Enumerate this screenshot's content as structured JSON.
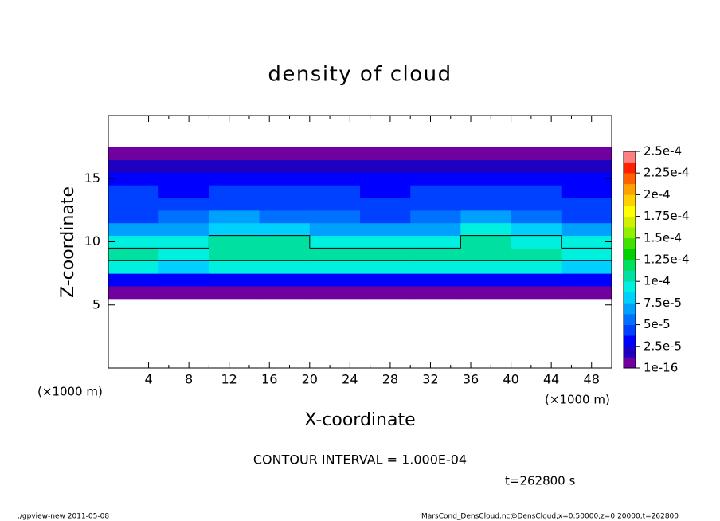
{
  "chart_data": {
    "type": "heatmap",
    "title": "density of cloud",
    "xlabel": "X-coordinate",
    "ylabel": "Z-coordinate",
    "x_unit": "(×1000 m)",
    "y_unit": "(×1000 m)",
    "contour_note": "CONTOUR INTERVAL = 1.000E-04",
    "time_note": "t=262800 s",
    "footer_left": "./gpview-new  2011-05-08",
    "footer_right": "MarsCond_DensCloud.nc@DensCloud,x=0:50000,z=0:20000,t=262800",
    "xlim": [
      0,
      50
    ],
    "ylim": [
      0,
      20
    ],
    "xticks": [
      4,
      8,
      12,
      16,
      20,
      24,
      28,
      32,
      36,
      40,
      44,
      48
    ],
    "yticks": [
      5,
      10,
      15
    ],
    "x": [
      2.5,
      7.5,
      12.5,
      17.5,
      22.5,
      27.5,
      32.5,
      37.5,
      42.5,
      47.5
    ],
    "y": [
      6,
      7,
      8,
      9,
      10,
      11,
      12,
      13,
      14,
      15,
      16,
      17
    ],
    "values": [
      [
        8e-06,
        8e-06,
        8e-06,
        8e-06,
        8e-06,
        8e-06,
        8e-06,
        8e-06,
        8e-06,
        8e-06
      ],
      [
        3.5e-05,
        3.2e-05,
        3.4e-05,
        3.6e-05,
        3.5e-05,
        3.3e-05,
        3.4e-05,
        3.6e-05,
        3.3e-05,
        3.2e-05
      ],
      [
        9e-05,
        8.6e-05,
        8.8e-05,
        9.2e-05,
        9e-05,
        8.8e-05,
        9e-05,
        9.2e-05,
        8.8e-05,
        8.6e-05
      ],
      [
        0.000102,
        0.0001,
        0.000106,
        0.00011,
        0.000104,
        0.000102,
        0.000104,
        0.00011,
        0.000104,
        0.0001
      ],
      [
        9.2e-05,
        9.6e-05,
        0.000102,
        0.000106,
        9.8e-05,
        9.2e-05,
        9.8e-05,
        0.000108,
        0.0001,
        9.4e-05
      ],
      [
        6.8e-05,
        7.5e-05,
        8.5e-05,
        8.6e-05,
        7.2e-05,
        6.5e-05,
        7.4e-05,
        8.8e-05,
        8e-05,
        6.8e-05
      ],
      [
        5e-05,
        5.8e-05,
        6.5e-05,
        6.2e-05,
        5.2e-05,
        4.8e-05,
        5.6e-05,
        6.6e-05,
        6e-05,
        5e-05
      ],
      [
        4.2e-05,
        4.5e-05,
        4.8e-05,
        4.6e-05,
        4.2e-05,
        4e-05,
        4.4e-05,
        4.8e-05,
        4.4e-05,
        4e-05
      ],
      [
        3.8e-05,
        3.7e-05,
        3.9e-05,
        4e-05,
        3.8e-05,
        3.6e-05,
        3.8e-05,
        4.1e-05,
        3.9e-05,
        3.7e-05
      ],
      [
        3.6e-05,
        3.4e-05,
        3.3e-05,
        3.5e-05,
        3.6e-05,
        3.4e-05,
        3.3e-05,
        3.5e-05,
        3.6e-05,
        3.5e-05
      ],
      [
        1.8e-05,
        1.9e-05,
        1.8e-05,
        1.7e-05,
        1.8e-05,
        1.9e-05,
        1.8e-05,
        1.8e-05,
        1.9e-05,
        1.8e-05
      ],
      [
        5e-06,
        5e-06,
        5e-06,
        5e-06,
        5e-06,
        5e-06,
        5e-06,
        5e-06,
        5e-06,
        5e-06
      ]
    ],
    "contour_levels": [
      0.0001
    ],
    "clim": [
      1e-16,
      0.00025
    ],
    "colors": [
      "#7000a0",
      "#1e00c0",
      "#0000ff",
      "#0040ff",
      "#0070ff",
      "#00a0ff",
      "#00d0ff",
      "#00f0e0",
      "#00e0a0",
      "#00e060",
      "#00d000",
      "#40e000",
      "#90f000",
      "#d0f000",
      "#ffff00",
      "#ffd000",
      "#ffa000",
      "#ff6000",
      "#ff2000",
      "#ff8080"
    ],
    "colorbar_ticks": [
      {
        "value": 1e-16,
        "label": "1e-16"
      },
      {
        "value": 2.5e-05,
        "label": "2.5e-5"
      },
      {
        "value": 5e-05,
        "label": "5e-5"
      },
      {
        "value": 7.5e-05,
        "label": "7.5e-5"
      },
      {
        "value": 0.0001,
        "label": "1e-4"
      },
      {
        "value": 0.000125,
        "label": "1.25e-4"
      },
      {
        "value": 0.00015,
        "label": "1.5e-4"
      },
      {
        "value": 0.000175,
        "label": "1.75e-4"
      },
      {
        "value": 0.0002,
        "label": "2e-4"
      },
      {
        "value": 0.000225,
        "label": "2.25e-4"
      },
      {
        "value": 0.00025,
        "label": "2.5e-4"
      }
    ]
  }
}
